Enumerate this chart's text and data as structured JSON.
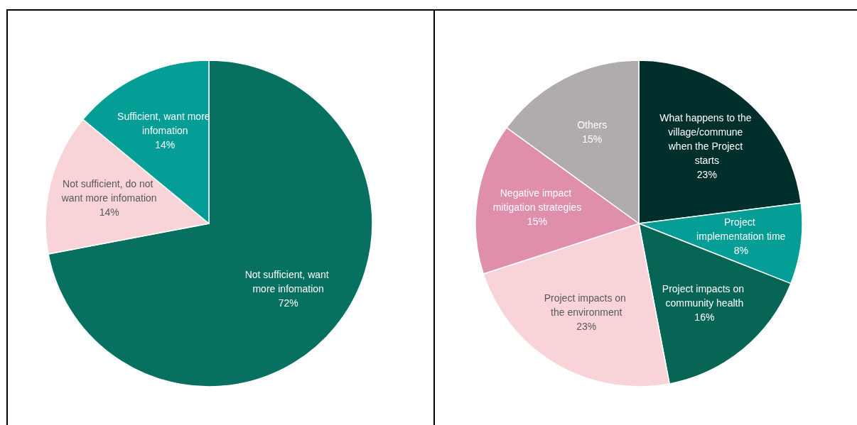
{
  "chart_data": [
    {
      "type": "pie",
      "categories": [
        "Not sufficient, want more infomation",
        "Not sufficient, do not want more infomation",
        "Sufficient, want more infomation"
      ],
      "values": [
        72,
        14,
        14
      ],
      "value_labels": [
        "72%",
        "14%",
        "14%"
      ],
      "colors": [
        "#077060",
        "#f8d3d8",
        "#049e97"
      ],
      "legend": false
    },
    {
      "type": "pie",
      "categories": [
        "What happens to the village/commune when the Project starts",
        "Project implementation time",
        "Project impacts on community health",
        "Project impacts on the environment",
        "Negative impact mitigation strategies",
        "Others"
      ],
      "values": [
        23,
        8,
        16,
        23,
        15,
        15
      ],
      "value_labels": [
        "23%",
        "8%",
        "16%",
        "23%",
        "15%",
        "15%"
      ],
      "colors": [
        "#002f2c",
        "#049e97",
        "#076555",
        "#f8d3d8",
        "#df8fac",
        "#b0acab"
      ],
      "legend": false
    }
  ]
}
